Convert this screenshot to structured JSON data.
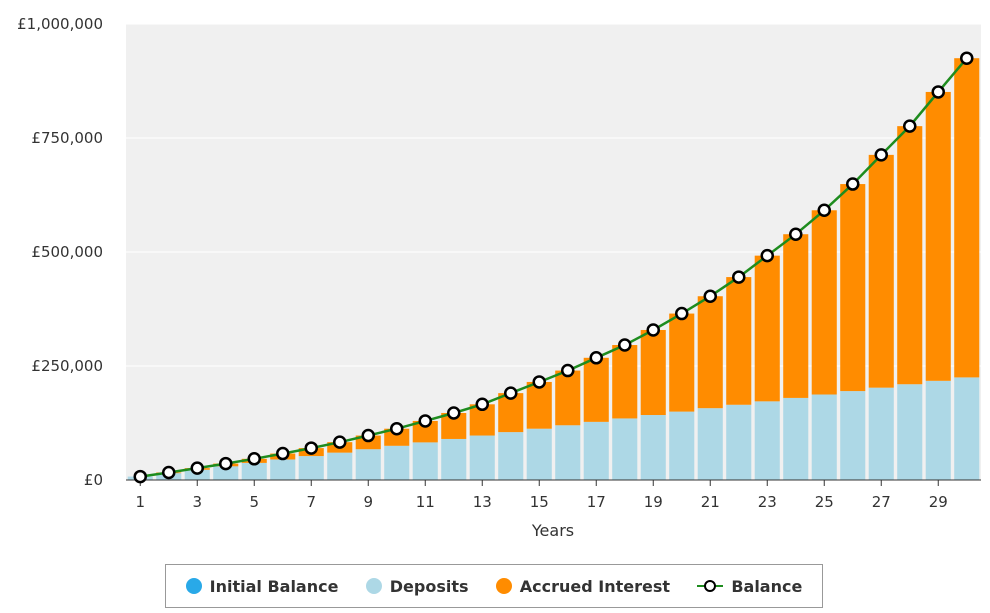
{
  "colors": {
    "initial_balance": "#29a9e8",
    "deposits": "#add8e6",
    "accrued_interest": "#ff8c00",
    "balance_line": "#1e8c1e",
    "balance_marker_stroke": "#000000",
    "plot_background": "#f0f0f0",
    "gridline": "#ffffff"
  },
  "chart_data": {
    "type": "bar",
    "stacked": true,
    "xlabel": "Years",
    "x": [
      1,
      2,
      3,
      4,
      5,
      6,
      7,
      8,
      9,
      10,
      11,
      12,
      13,
      14,
      15,
      16,
      17,
      18,
      19,
      20,
      21,
      22,
      23,
      24,
      25,
      26,
      27,
      28,
      29,
      30
    ],
    "xtick_labels": [
      "1",
      "3",
      "5",
      "7",
      "9",
      "11",
      "13",
      "15",
      "17",
      "19",
      "21",
      "23",
      "25",
      "27",
      "29"
    ],
    "ylim": [
      0,
      1000000
    ],
    "ytick_labels": [
      "£0",
      "£250,000",
      "£500,000",
      "£750,000",
      "£1,000,000"
    ],
    "ytick_values": [
      0,
      250000,
      500000,
      750000,
      1000000
    ],
    "grid": true,
    "legend_position": "bottom",
    "series": [
      {
        "name": "Initial Balance",
        "kind": "bar",
        "values": [
          0,
          0,
          0,
          0,
          0,
          0,
          0,
          0,
          0,
          0,
          0,
          0,
          0,
          0,
          0,
          0,
          0,
          0,
          0,
          0,
          0,
          0,
          0,
          0,
          0,
          0,
          0,
          0,
          0,
          0
        ]
      },
      {
        "name": "Deposits",
        "kind": "bar",
        "values": [
          7500,
          15000,
          22500,
          30000,
          37500,
          45000,
          52500,
          60000,
          67500,
          75000,
          82500,
          90000,
          97500,
          105000,
          112500,
          120000,
          127500,
          135000,
          142500,
          150000,
          157500,
          165000,
          172500,
          180000,
          187500,
          195000,
          202500,
          210000,
          217500,
          225000
        ]
      },
      {
        "name": "Accrued Interest",
        "kind": "bar",
        "values": [
          0,
          1500,
          3500,
          6000,
          9000,
          13000,
          17500,
          23000,
          30000,
          37500,
          47000,
          57000,
          68500,
          85500,
          102500,
          120000,
          140500,
          161000,
          186500,
          215000,
          245500,
          280000,
          319500,
          359000,
          404000,
          454000,
          510500,
          566000,
          633500,
          700000
        ]
      },
      {
        "name": "Balance",
        "kind": "line",
        "values": [
          7500,
          16500,
          26000,
          36000,
          46500,
          58000,
          70000,
          83000,
          97500,
          112500,
          129500,
          147000,
          166000,
          190500,
          215000,
          240000,
          268000,
          296000,
          329000,
          365000,
          403000,
          445000,
          492000,
          539000,
          591500,
          649000,
          713000,
          776000,
          851000,
          925000
        ]
      }
    ]
  }
}
